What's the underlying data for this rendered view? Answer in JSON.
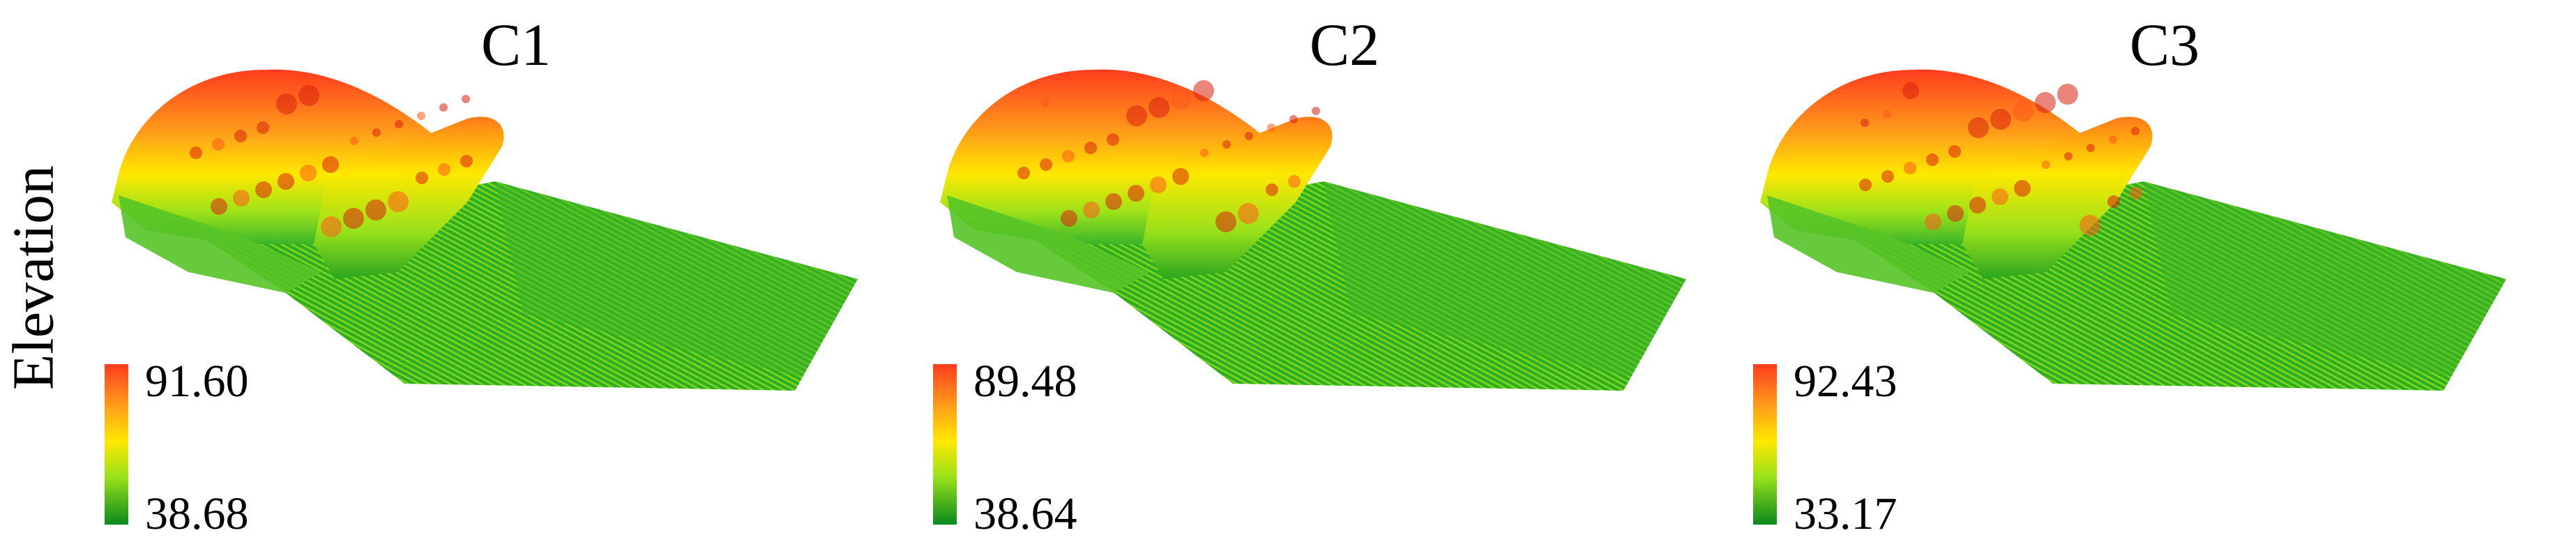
{
  "y_axis_label": "Elevation",
  "colormap": {
    "high": "#ff3b1f",
    "mid_high": "#ff9a1a",
    "mid": "#ffe800",
    "mid_low": "#9be21a",
    "low": "#0a8a1e"
  },
  "panels": [
    {
      "title": "C1",
      "colorbar": {
        "max": "91.60",
        "min": "38.68"
      }
    },
    {
      "title": "C2",
      "colorbar": {
        "max": "89.48",
        "min": "38.64"
      }
    },
    {
      "title": "C3",
      "colorbar": {
        "max": "92.43",
        "min": "33.17"
      }
    }
  ]
}
